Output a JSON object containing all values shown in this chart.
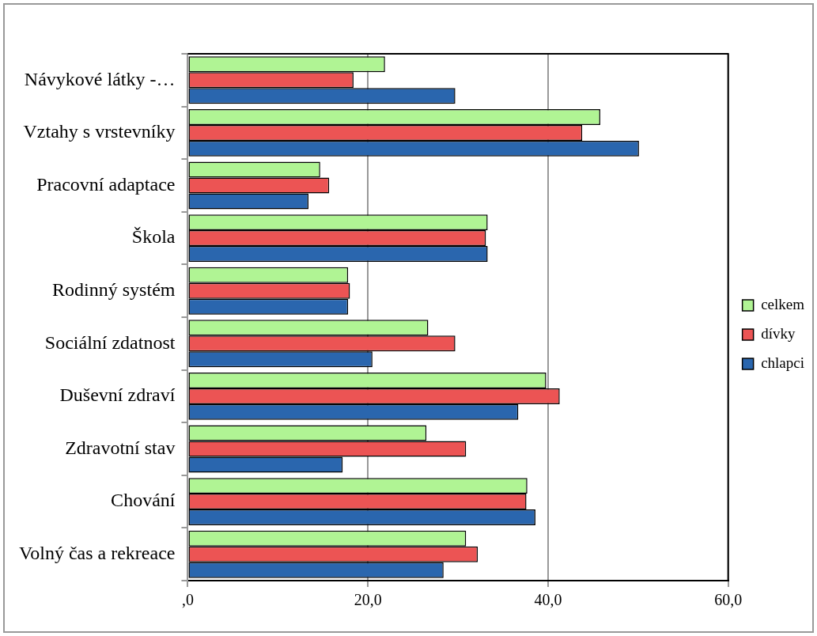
{
  "chart_data": {
    "type": "bar",
    "orientation": "horizontal",
    "categories": [
      "Návykové látky -…",
      "Vztahy s vrstevníky",
      "Pracovní adaptace",
      "Škola",
      "Rodinný systém",
      "Sociální zdatnost",
      "Duševní zdraví",
      "Zdravotní stav",
      "Chování",
      "Volný čas a rekreace"
    ],
    "series": [
      {
        "name": "celkem",
        "color": "#b0f494",
        "values": [
          21.9,
          45.8,
          14.7,
          33.3,
          17.8,
          26.7,
          39.8,
          26.5,
          37.7,
          30.9
        ]
      },
      {
        "name": "dívky",
        "color": "#ec5454",
        "values": [
          18.4,
          43.8,
          15.7,
          33.1,
          18.0,
          29.7,
          41.3,
          30.9,
          37.6,
          32.2
        ]
      },
      {
        "name": "chlapci",
        "color": "#2a66ae",
        "values": [
          29.7,
          50.1,
          13.4,
          33.3,
          17.8,
          20.5,
          36.7,
          17.2,
          38.6,
          28.4
        ]
      }
    ],
    "xlim": [
      0,
      60
    ],
    "xticks": [
      {
        "value": 0,
        "label": ",0"
      },
      {
        "value": 20,
        "label": "20,0"
      },
      {
        "value": 40,
        "label": "40,0"
      },
      {
        "value": 60,
        "label": "60,0"
      }
    ],
    "grid": "x",
    "legend": "right"
  }
}
